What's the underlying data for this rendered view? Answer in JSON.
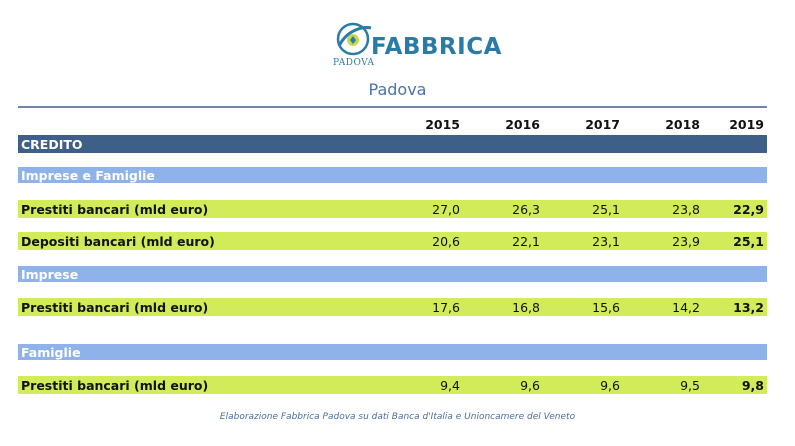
{
  "brand": {
    "name": "FABBRICA",
    "sub": "PADOVA"
  },
  "subtitle": "Padova",
  "years": [
    "2015",
    "2016",
    "2017",
    "2018",
    "2019"
  ],
  "sections": {
    "credito": "CREDITO",
    "imprese_famiglie": "Imprese e Famiglie",
    "imprese": "Imprese",
    "famiglie": "Famiglie"
  },
  "rows": {
    "if_prestiti": {
      "label": "Prestiti bancari (mld euro)",
      "values": [
        "27,0",
        "26,3",
        "25,1",
        "23,8",
        "22,9"
      ]
    },
    "if_depositi": {
      "label": "Depositi bancari (mld euro)",
      "values": [
        "20,6",
        "22,1",
        "23,1",
        "23,9",
        "25,1"
      ]
    },
    "imp_prestiti": {
      "label": "Prestiti bancari (mld euro)",
      "values": [
        "17,6",
        "16,8",
        "15,6",
        "14,2",
        "13,2"
      ]
    },
    "fam_prestiti": {
      "label": "Prestiti bancari (mld euro)",
      "values": [
        "9,4",
        "9,6",
        "9,6",
        "9,5",
        "9,8"
      ]
    }
  },
  "footnote": "Elaborazione Fabbrica Padova su dati Banca d'Italia e Unioncamere del Veneto",
  "colors": {
    "dark_band": "#3e5f88",
    "light_band": "#8fb2ea",
    "data_band": "#d1ec58",
    "brand": "#2b7ba7"
  }
}
